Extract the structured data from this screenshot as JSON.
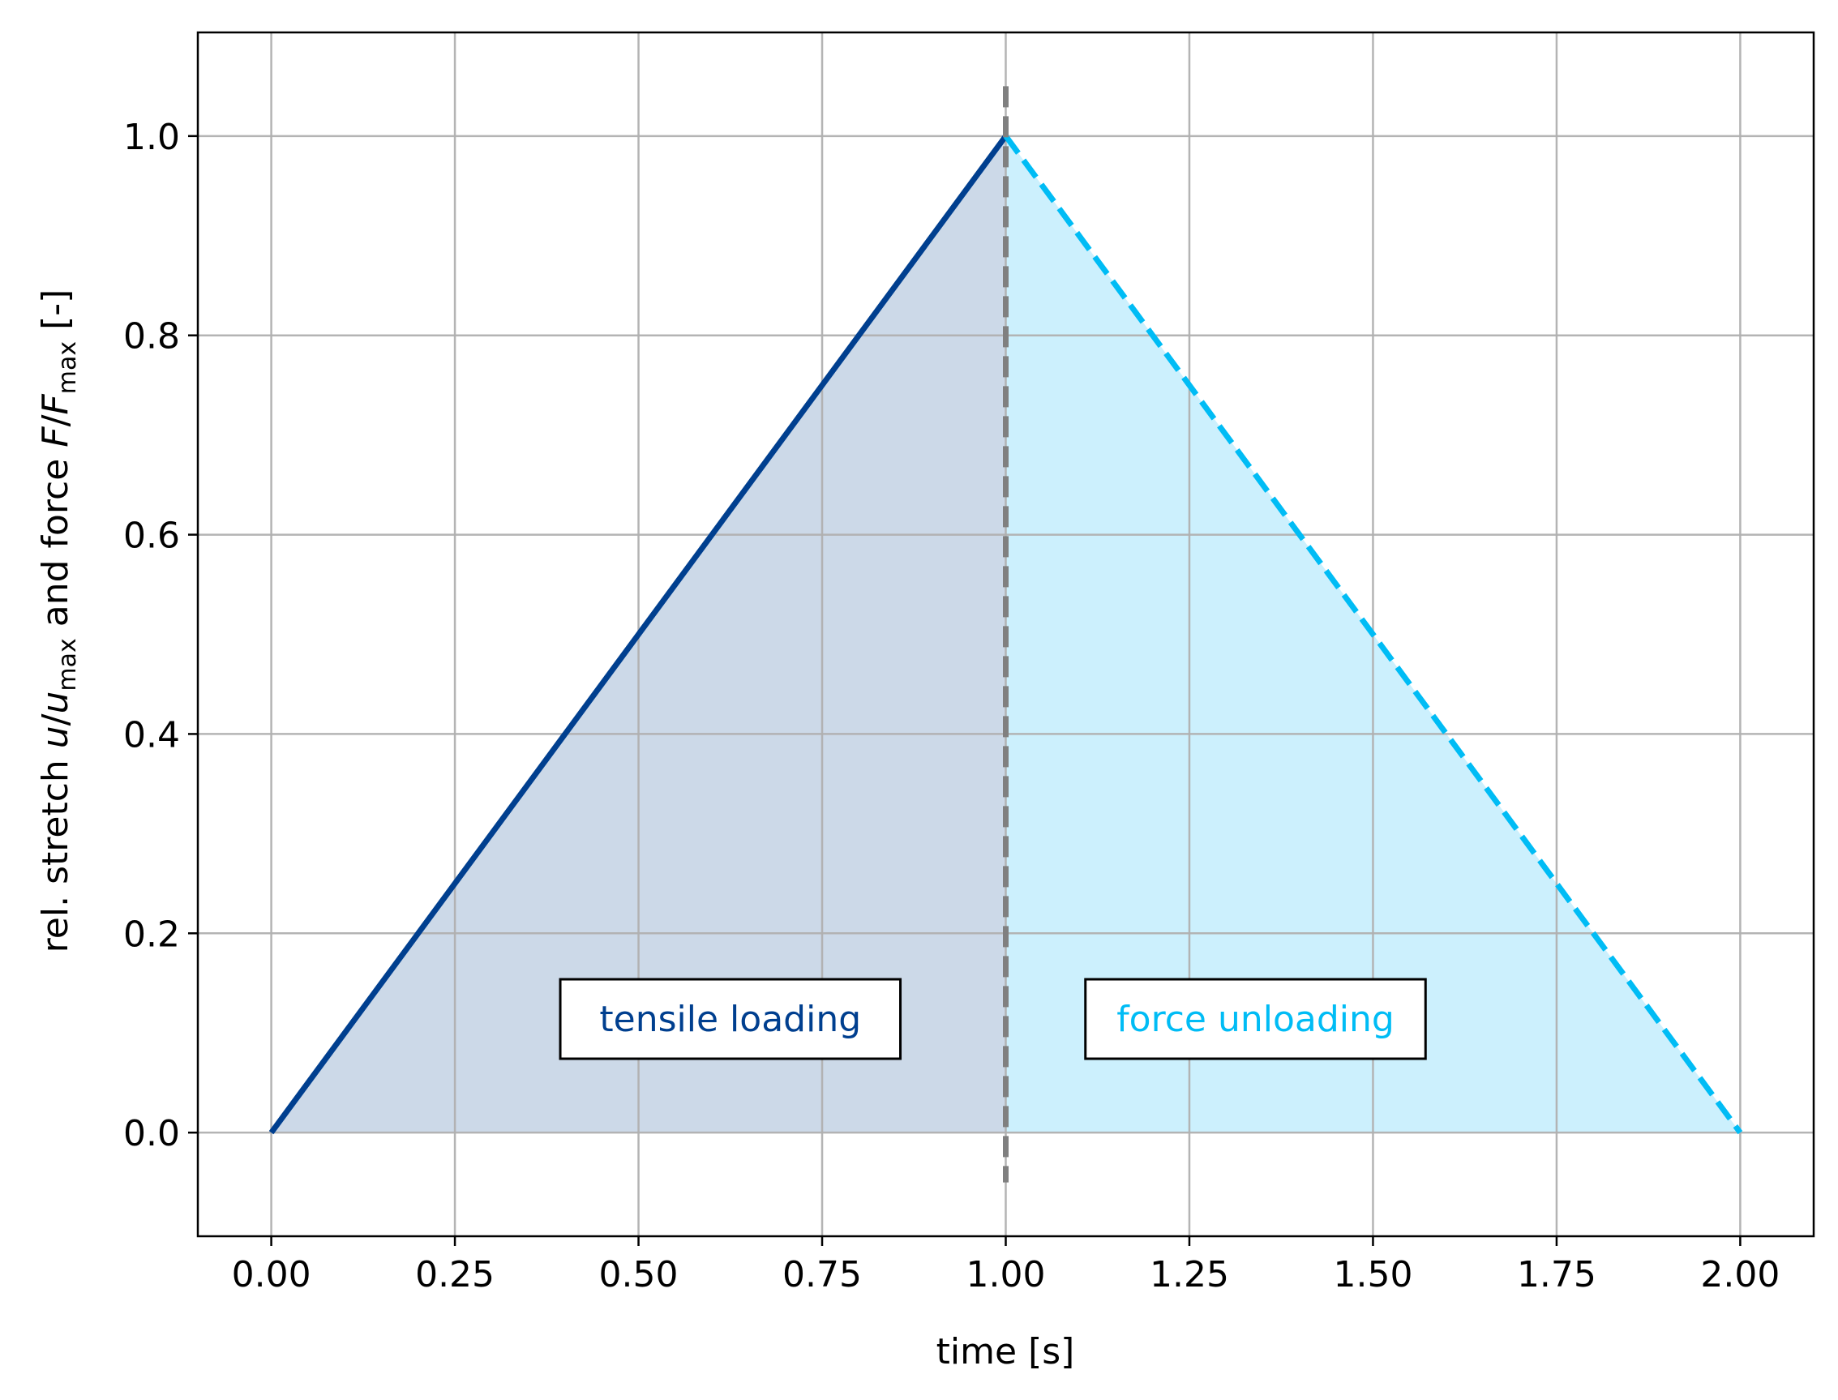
{
  "chart_data": {
    "type": "line",
    "xlabel": "time [s]",
    "ylabel_parts": {
      "prefix": "rel. stretch ",
      "u": "u",
      "slash1": "/",
      "u2": "u",
      "max1": "max",
      "mid": " and force ",
      "F": "F",
      "slash2": "/",
      "F2": "F",
      "max2": "max",
      "suffix": " [-]"
    },
    "xlim": [
      -0.1,
      2.1
    ],
    "ylim": [
      -0.104,
      1.104
    ],
    "xticks": [
      0.0,
      0.25,
      0.5,
      0.75,
      1.0,
      1.25,
      1.5,
      1.75,
      2.0
    ],
    "xtick_labels": [
      "0.00",
      "0.25",
      "0.50",
      "0.75",
      "1.00",
      "1.25",
      "1.50",
      "1.75",
      "2.00"
    ],
    "yticks": [
      0.0,
      0.2,
      0.4,
      0.6,
      0.8,
      1.0
    ],
    "ytick_labels": [
      "0.0",
      "0.2",
      "0.4",
      "0.6",
      "0.8",
      "1.0"
    ],
    "grid": true,
    "series": [
      {
        "x": [
          0.0,
          1.0
        ],
        "y": [
          0.0,
          1.0
        ],
        "color": "#003f8f",
        "style": "solid",
        "fill": "#ccd9e8"
      },
      {
        "x": [
          1.0,
          2.0
        ],
        "y": [
          1.0,
          0.0
        ],
        "color": "#00bcf5",
        "style": "dashed",
        "fill": "#ccf0fd"
      }
    ],
    "vline": {
      "x": 1.0,
      "color": "#808080",
      "style": "dashed"
    },
    "annotations": [
      {
        "text": "tensile loading",
        "x": 0.625,
        "y": 0.114,
        "color": "#003f8f"
      },
      {
        "text": "force unloading",
        "x": 1.34,
        "y": 0.114,
        "color": "#00bcf5"
      }
    ]
  }
}
